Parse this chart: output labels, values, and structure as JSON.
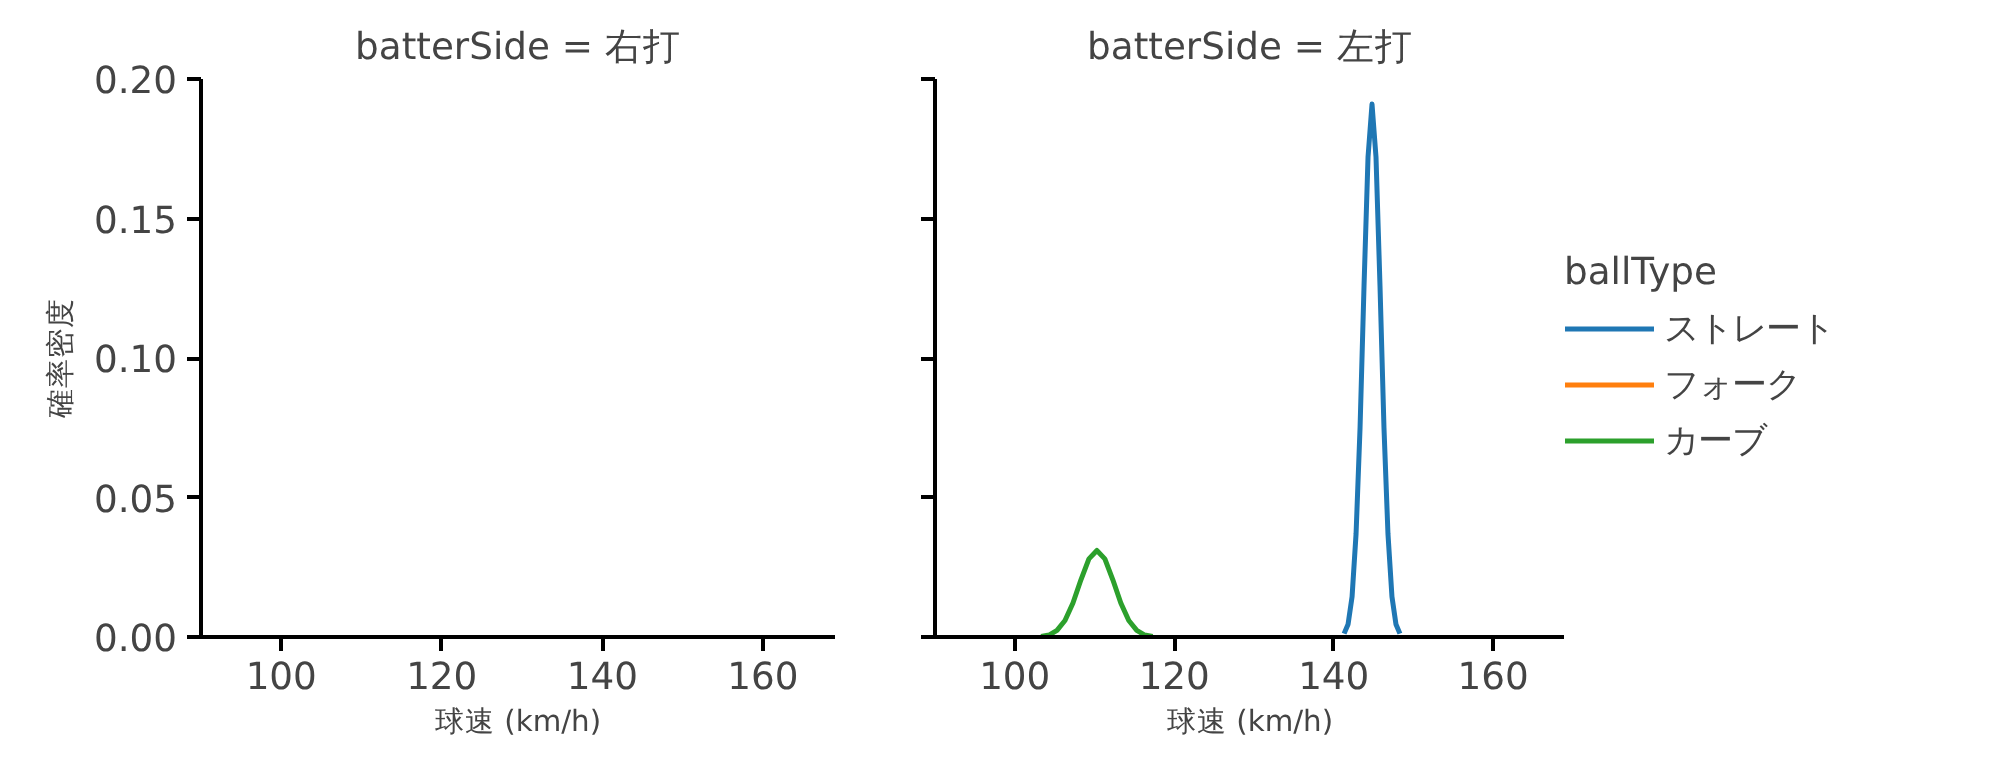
{
  "chart_data": [
    {
      "type": "line",
      "title": "batterSide = 右打",
      "xlabel": "球速 (km/h)",
      "ylabel": "確率密度",
      "xlim": [
        90,
        169
      ],
      "ylim": [
        0,
        0.2
      ],
      "xticks": [
        100,
        120,
        140,
        160
      ],
      "yticks": [
        {
          "value": 0,
          "label": "0.00"
        },
        {
          "value": 0.05,
          "label": "0.05"
        },
        {
          "value": 0.1,
          "label": "0.10"
        },
        {
          "value": 0.15,
          "label": "0.15"
        },
        {
          "value": 0.2,
          "label": "0.20"
        }
      ],
      "grid": false,
      "legend": false
    },
    {
      "type": "line",
      "title": "batterSide = 左打",
      "xlabel": "球速 (km/h)",
      "xlim": [
        90,
        169
      ],
      "ylim": [
        0,
        0.2
      ],
      "xticks": [
        100,
        120,
        140,
        160
      ],
      "yticks": [
        0,
        0.05,
        0.1,
        0.15,
        0.2
      ],
      "grid": false,
      "legend": "right",
      "legend_title": "ballType",
      "tick_labels": "x",
      "series": [
        {
          "name": "ストレート",
          "color": "#1f77b4",
          "x": [
            141.3,
            141.8,
            142.3,
            142.8,
            143.3,
            143.8,
            144.3,
            144.8,
            145.3,
            145.8,
            146.3,
            146.8,
            147.3,
            147.8,
            148.3
          ],
          "values": [
            0.0012,
            0.0046,
            0.0145,
            0.037,
            0.075,
            0.126,
            0.172,
            0.191,
            0.172,
            0.126,
            0.075,
            0.037,
            0.0145,
            0.0046,
            0.0012
          ]
        },
        {
          "name": "フォーク",
          "color": "#ff7f0e"
        },
        {
          "name": "カーブ",
          "color": "#2ca02c",
          "x": [
            103.3,
            104.3,
            105.3,
            106.3,
            107.3,
            108.3,
            109.3,
            110.3,
            111.3,
            112.3,
            113.3,
            114.3,
            115.3,
            116.3,
            117.3
          ],
          "values": [
            0.0002,
            0.0007,
            0.0024,
            0.0059,
            0.0122,
            0.0205,
            0.028,
            0.031,
            0.028,
            0.0205,
            0.0122,
            0.0059,
            0.0024,
            0.0007,
            0.0002
          ]
        }
      ]
    }
  ]
}
